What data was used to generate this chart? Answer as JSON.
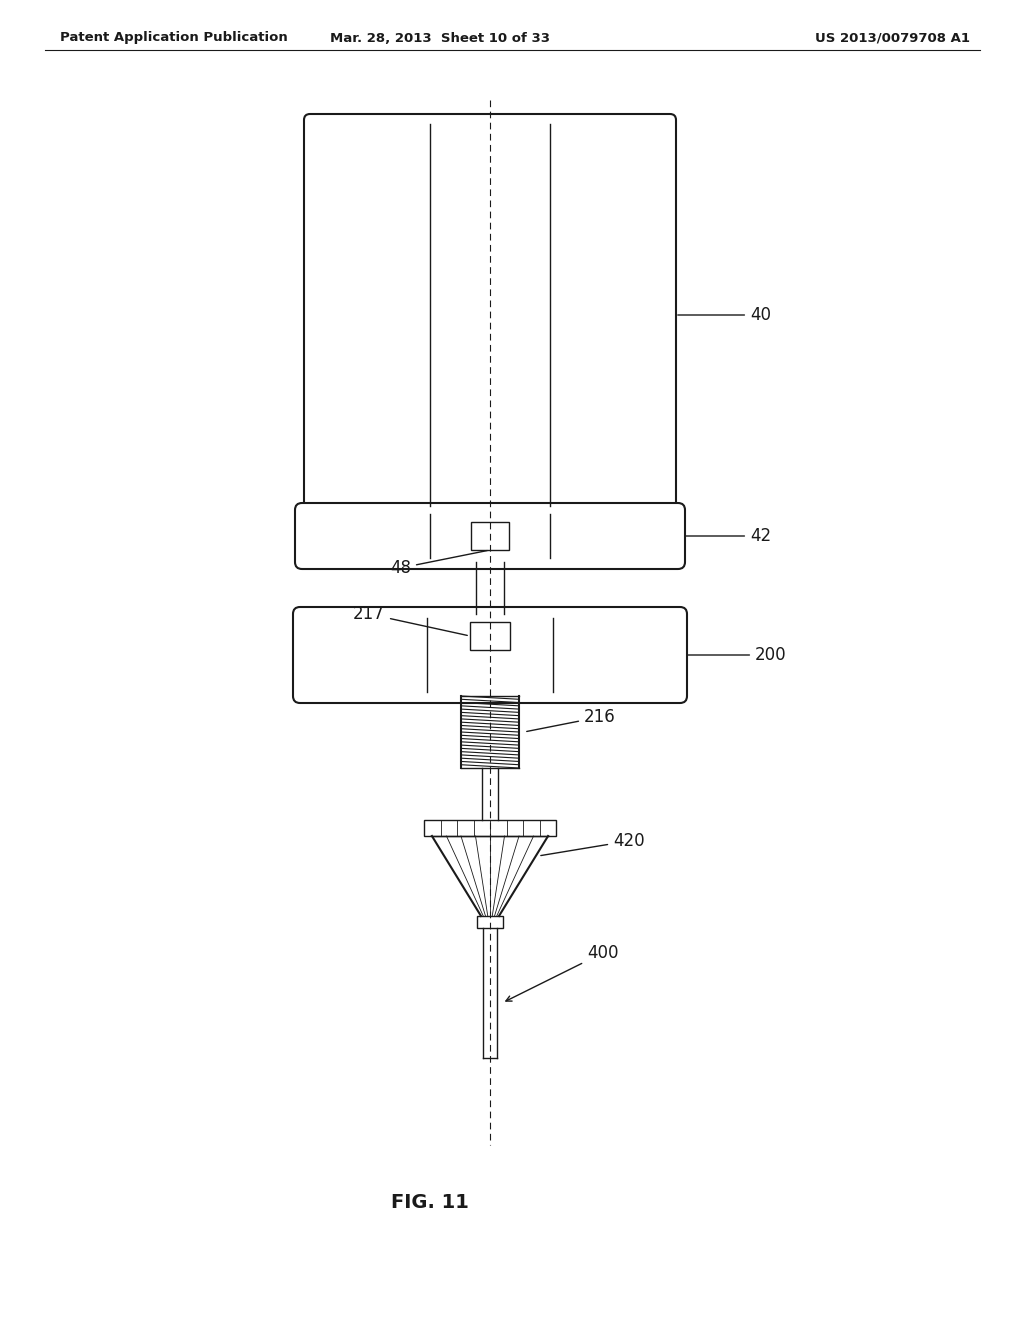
{
  "bg_color": "#ffffff",
  "line_color": "#1a1a1a",
  "header_left": "Patent Application Publication",
  "header_mid": "Mar. 28, 2013  Sheet 10 of 33",
  "header_right": "US 2013/0079708 A1",
  "fig_label": "FIG. 11",
  "figsize": [
    10.24,
    13.2
  ],
  "dpi": 100
}
